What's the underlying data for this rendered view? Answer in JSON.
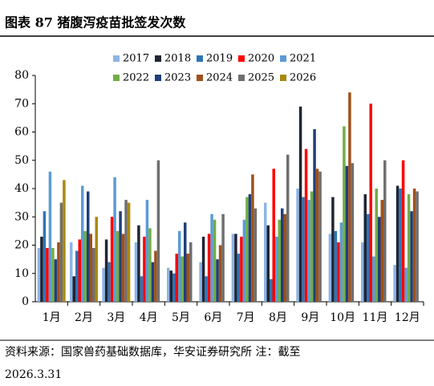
{
  "chart_data": {
    "type": "bar",
    "title": "图表 87 猪腹泻疫苗批签发次数",
    "categories": [
      "1月",
      "2月",
      "3月",
      "4月",
      "5月",
      "6月",
      "7月",
      "8月",
      "9月",
      "10月",
      "11月",
      "12月"
    ],
    "series": [
      {
        "name": "2017",
        "color": "#8eb4e3",
        "values": [
          19,
          21,
          12,
          21,
          12,
          14,
          24,
          35,
          40,
          24,
          21,
          13
        ]
      },
      {
        "name": "2018",
        "color": "#1f2533",
        "values": [
          23,
          9,
          22,
          27,
          11,
          23,
          24,
          27,
          69,
          37,
          38,
          41
        ]
      },
      {
        "name": "2019",
        "color": "#2e75b6",
        "values": [
          32,
          18,
          14,
          9,
          10,
          9,
          17,
          8,
          37,
          25,
          31,
          40
        ]
      },
      {
        "name": "2020",
        "color": "#ff0000",
        "values": [
          19,
          22,
          30,
          23,
          17,
          24,
          23,
          47,
          54,
          21,
          70,
          50
        ]
      },
      {
        "name": "2021",
        "color": "#5b9bd5",
        "values": [
          46,
          41,
          44,
          36,
          25,
          31,
          29,
          23,
          36,
          28,
          16,
          12
        ]
      },
      {
        "name": "2022",
        "color": "#70ad47",
        "values": [
          19,
          25,
          25,
          26,
          16,
          29,
          37,
          29,
          39,
          62,
          40,
          38
        ]
      },
      {
        "name": "2023",
        "color": "#203f7a",
        "values": [
          15,
          39,
          32,
          14,
          28,
          15,
          38,
          33,
          61,
          48,
          30,
          32
        ]
      },
      {
        "name": "2024",
        "color": "#a0501b",
        "values": [
          21,
          24,
          24,
          18,
          17,
          20,
          45,
          31,
          47,
          74,
          36,
          40
        ]
      },
      {
        "name": "2025",
        "color": "#6f6f6f",
        "values": [
          35,
          19,
          36,
          50,
          21,
          31,
          33,
          52,
          46,
          49,
          50,
          39
        ]
      },
      {
        "name": "2026",
        "color": "#a8890f",
        "values": [
          43,
          30,
          35,
          null,
          null,
          null,
          null,
          null,
          null,
          null,
          null,
          null
        ]
      }
    ],
    "ylim": [
      0,
      80
    ],
    "yticks": [
      0,
      10,
      20,
      30,
      40,
      50,
      60,
      70,
      80
    ],
    "grid": false,
    "source": [
      "资料来源：国家兽药基础数据库，华安证券研究所 注：截至",
      "2026.3.31"
    ]
  }
}
